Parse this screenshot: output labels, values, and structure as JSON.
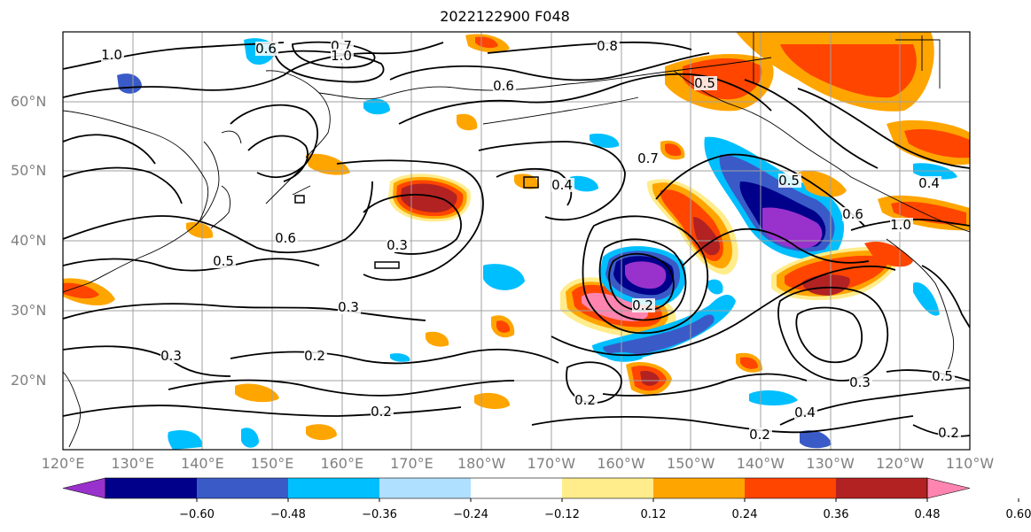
{
  "title": "2022122900 F048",
  "map": {
    "lat_ticks": [
      "60°N",
      "50°N",
      "40°N",
      "30°N",
      "20°N"
    ],
    "lon_ticks": [
      "120°E",
      "130°E",
      "140°E",
      "150°E",
      "160°E",
      "170°E",
      "180°W",
      "170°W",
      "160°W",
      "150°W",
      "140°W",
      "130°W",
      "120°W",
      "110°W"
    ],
    "contour_labels": [
      "1.0",
      "0.6",
      "0.7",
      "1.0",
      "0.8",
      "0.6",
      "0.5",
      "0.7",
      "0.4",
      "0.5",
      "0.6",
      "1.0",
      "0.3",
      "0.6",
      "0.5",
      "0.3",
      "0.2",
      "0.2",
      "0.2",
      "0.3",
      "0.2",
      "0.4",
      "0.3",
      "0.5",
      "0.2",
      "0.2",
      "0.4"
    ]
  },
  "colorbar": {
    "labels": [
      "−0.60",
      "−0.48",
      "−0.36",
      "−0.24",
      "−0.12",
      "0.12",
      "0.24",
      "0.36",
      "0.48",
      "0.60"
    ],
    "colors": [
      "#9932cc",
      "#00008b",
      "#3a5bc7",
      "#00bfff",
      "#b0e0ff",
      "#ffffff",
      "#ffec8b",
      "#ffa500",
      "#ff4500",
      "#b22222",
      "#ff85b0"
    ]
  }
}
